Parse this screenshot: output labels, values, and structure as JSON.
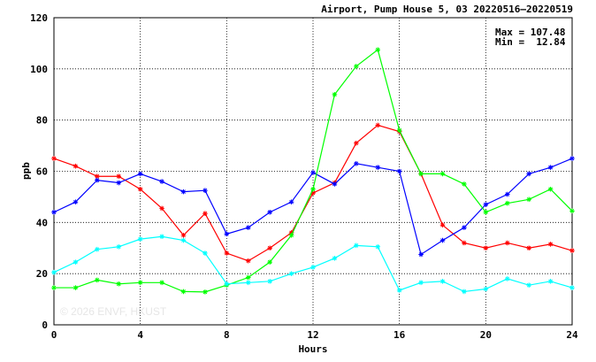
{
  "chart_data": {
    "type": "line",
    "title": "Airport, Pump House 5, 03 20220516–20220519",
    "xlabel": "Hours",
    "ylabel": "ppb",
    "xlim": [
      0,
      24
    ],
    "ylim": [
      0,
      120
    ],
    "x_ticks": [
      "0",
      "4",
      "8",
      "12",
      "16",
      "20",
      "24"
    ],
    "y_ticks": [
      "0",
      "20",
      "40",
      "60",
      "80",
      "100",
      "120"
    ],
    "grid": true,
    "stats": {
      "max_label": "Max = 107.48",
      "min_label": "Min =  12.84"
    },
    "watermark": "© 2026  ENVF, HKUST",
    "x": [
      0,
      1,
      2,
      3,
      4,
      5,
      6,
      7,
      8,
      9,
      10,
      11,
      12,
      13,
      14,
      15,
      16,
      17,
      18,
      19,
      20,
      21,
      22,
      23,
      24
    ],
    "series": [
      {
        "color": "#ff0000",
        "values": [
          65,
          62,
          58,
          58,
          53,
          45.5,
          35,
          43.5,
          28,
          25,
          30,
          36,
          51.5,
          55.5,
          71,
          78,
          75.5,
          59,
          39,
          32,
          30,
          32,
          30,
          31.5,
          29
        ]
      },
      {
        "color": "#0000ff",
        "values": [
          44,
          48,
          56.5,
          55.5,
          59,
          56,
          52,
          52.5,
          35.5,
          38,
          44,
          48,
          59.5,
          55,
          63,
          61.5,
          60,
          27.5,
          33,
          38,
          47,
          51,
          59,
          61.5,
          65
        ]
      },
      {
        "color": "#00ff00",
        "values": [
          14.5,
          14.5,
          17.5,
          16,
          16.5,
          16.5,
          13,
          12.84,
          15.5,
          18.5,
          24.5,
          35,
          53,
          90,
          101,
          107.48,
          76,
          59,
          59,
          55,
          44,
          47.5,
          49,
          53,
          44.5
        ]
      },
      {
        "color": "#00ffff",
        "values": [
          20.5,
          24.5,
          29.5,
          30.5,
          33.5,
          34.5,
          33,
          28,
          16,
          16.5,
          17,
          20,
          22.5,
          26,
          31,
          30.5,
          13.5,
          16.5,
          17,
          13,
          14,
          18,
          15.5,
          17,
          14.5
        ]
      }
    ]
  }
}
